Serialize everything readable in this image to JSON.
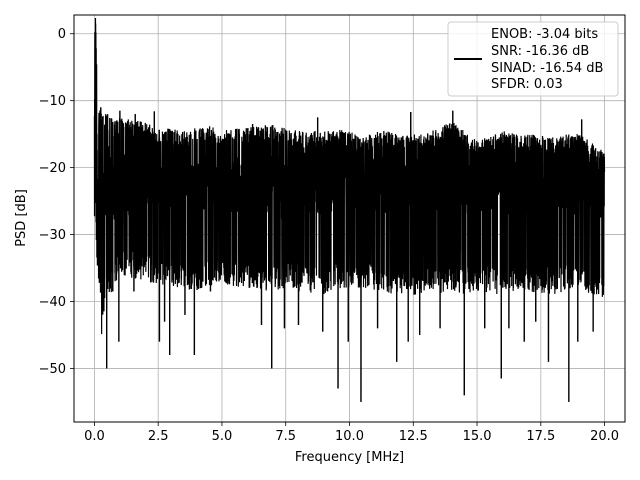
{
  "chart_data": {
    "type": "line",
    "title": "",
    "xlabel": "Frequency [MHz]",
    "ylabel": "PSD [dB]",
    "xlim": [
      -0.8,
      20.8
    ],
    "ylim": [
      -58,
      2.8
    ],
    "xticks": [
      0.0,
      2.5,
      5.0,
      7.5,
      10.0,
      12.5,
      15.0,
      17.5,
      20.0
    ],
    "xtick_labels": [
      "0.0",
      "2.5",
      "5.0",
      "7.5",
      "10.0",
      "12.5",
      "15.0",
      "17.5",
      "20.0"
    ],
    "yticks": [
      0,
      -10,
      -20,
      -30,
      -40,
      -50
    ],
    "ytick_labels": [
      "0",
      "−10",
      "−20",
      "−30",
      "−40",
      "−50"
    ],
    "grid": true,
    "legend": {
      "position": "top-right",
      "entries": [
        "ENOB: -3.04 bits",
        "SNR: -16.36 dB",
        "SINAD: -16.54 dB",
        "SFDR: 0.03"
      ]
    },
    "series": [
      {
        "line_color": "#000000",
        "x": [
          0.0,
          0.02,
          0.05,
          0.08,
          0.12,
          0.2,
          0.3,
          0.45,
          0.6,
          0.8,
          1.0,
          1.5,
          2.0,
          2.5,
          3.0,
          3.5,
          4.0,
          4.5,
          5.0,
          6.0,
          7.0,
          7.5,
          8.0,
          9.0,
          9.5,
          10.0,
          10.5,
          11.0,
          12.0,
          13.0,
          14.0,
          14.5,
          15.0,
          16.0,
          16.7,
          17.0,
          18.0,
          18.5,
          19.0,
          20.0
        ],
        "y": [
          -16.5,
          -1.0,
          -0.2,
          -12.0,
          -25.0,
          -20.0,
          -27.0,
          -22.0,
          -21.0,
          -24.0,
          -22.0,
          -23.0,
          -21.5,
          -22.5,
          -23.0,
          -22.0,
          -24.0,
          -21.5,
          -22.5,
          -23.0,
          -22.0,
          -24.0,
          -22.0,
          -23.0,
          -21.5,
          -22.0,
          -23.5,
          -22.5,
          -22.0,
          -23.0,
          -21.5,
          -22.5,
          -23.0,
          -22.0,
          -24.0,
          -22.5,
          -23.0,
          -22.0,
          -23.5,
          -23.0
        ],
        "upper_envelope": [
          -10.0,
          -0.2,
          -0.1,
          -2.0,
          -12.0,
          -11.5,
          -11.3,
          -12.0,
          -12.0,
          -13.0,
          -12.5,
          -12.8,
          -13.2,
          -14.0,
          -14.2,
          -14.5,
          -14.0,
          -13.8,
          -14.3,
          -14.0,
          -13.5,
          -14.0,
          -14.5,
          -14.5,
          -14.3,
          -14.5,
          -15.5,
          -14.2,
          -15.0,
          -15.0,
          -13.0,
          -14.5,
          -16.0,
          -14.5,
          -15.0,
          -15.0,
          -15.5,
          -14.8,
          -15.0,
          -17.5
        ],
        "lower_envelope": [
          -28.0,
          -28.5,
          -27.0,
          -33.0,
          -36.0,
          -40.0,
          -46.0,
          -38.0,
          -39.0,
          -38.0,
          -36.0,
          -36.5,
          -37.0,
          -37.5,
          -38.0,
          -38.0,
          -38.5,
          -38.0,
          -37.5,
          -38.0,
          -38.5,
          -38.0,
          -38.5,
          -39.0,
          -38.0,
          -38.5,
          -38.0,
          -38.5,
          -39.0,
          -39.0,
          -38.5,
          -39.0,
          -38.5,
          -39.0,
          -38.0,
          -38.5,
          -39.0,
          -38.5,
          -38.0,
          -40.0
        ],
        "notable_dips": [
          {
            "x": 0.1,
            "y": -28.5
          },
          {
            "x": 0.33,
            "y": -36.0
          },
          {
            "x": 0.48,
            "y": -50.0
          },
          {
            "x": 0.72,
            "y": -38.5
          },
          {
            "x": 0.96,
            "y": -46.0
          },
          {
            "x": 1.55,
            "y": -38.5
          },
          {
            "x": 2.55,
            "y": -46.0
          },
          {
            "x": 2.75,
            "y": -43.0
          },
          {
            "x": 2.95,
            "y": -48.0
          },
          {
            "x": 3.55,
            "y": -42.0
          },
          {
            "x": 3.92,
            "y": -48.0
          },
          {
            "x": 4.55,
            "y": -38.5
          },
          {
            "x": 6.55,
            "y": -43.5
          },
          {
            "x": 6.95,
            "y": -50.0
          },
          {
            "x": 7.45,
            "y": -44.0
          },
          {
            "x": 8.0,
            "y": -43.5
          },
          {
            "x": 8.95,
            "y": -44.5
          },
          {
            "x": 9.55,
            "y": -53.0
          },
          {
            "x": 9.95,
            "y": -46.0
          },
          {
            "x": 10.45,
            "y": -55.0
          },
          {
            "x": 11.1,
            "y": -44.0
          },
          {
            "x": 11.85,
            "y": -49.0
          },
          {
            "x": 12.3,
            "y": -46.0
          },
          {
            "x": 12.75,
            "y": -45.0
          },
          {
            "x": 13.55,
            "y": -44.0
          },
          {
            "x": 14.5,
            "y": -54.0
          },
          {
            "x": 15.3,
            "y": -44.0
          },
          {
            "x": 15.95,
            "y": -51.5
          },
          {
            "x": 16.25,
            "y": -44.0
          },
          {
            "x": 16.85,
            "y": -46.0
          },
          {
            "x": 17.3,
            "y": -43.0
          },
          {
            "x": 17.8,
            "y": -49.0
          },
          {
            "x": 18.6,
            "y": -55.0
          },
          {
            "x": 18.95,
            "y": -46.0
          },
          {
            "x": 19.55,
            "y": -44.5
          },
          {
            "x": 19.95,
            "y": -39.0
          }
        ],
        "notable_peaks": [
          {
            "x": 0.25,
            "y": -11.0
          },
          {
            "x": 1.0,
            "y": -11.5
          },
          {
            "x": 1.6,
            "y": -12.0
          },
          {
            "x": 2.35,
            "y": -11.6
          },
          {
            "x": 6.2,
            "y": -13.5
          },
          {
            "x": 8.75,
            "y": -12.5
          },
          {
            "x": 12.4,
            "y": -11.7
          },
          {
            "x": 14.05,
            "y": -11.5
          },
          {
            "x": 19.1,
            "y": -12.8
          }
        ]
      }
    ]
  }
}
